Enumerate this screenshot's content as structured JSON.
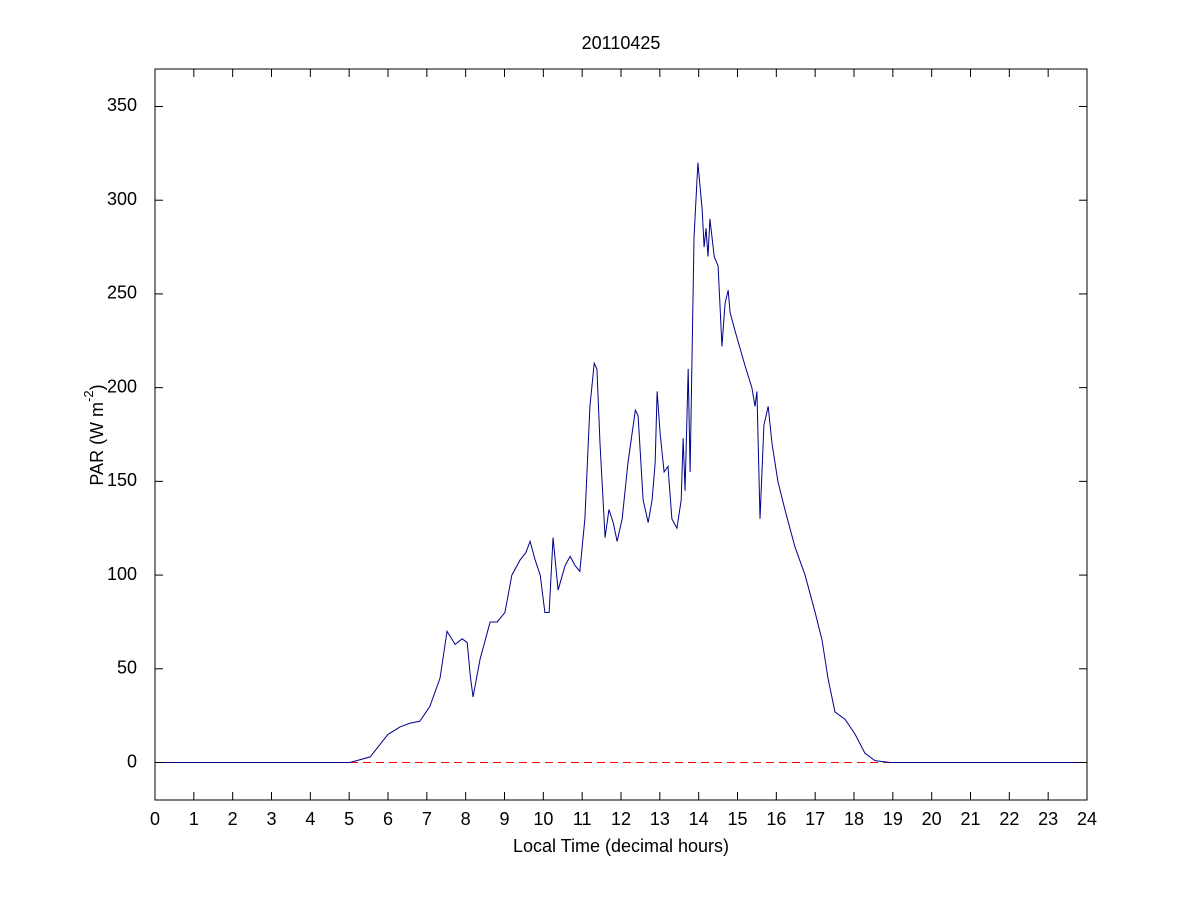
{
  "chart_data": {
    "type": "line",
    "title": "20110425",
    "xlabel": "Local Time (decimal hours)",
    "ylabel": [
      "PAR (W m",
      "-2",
      ")"
    ],
    "xlim": [
      0,
      24
    ],
    "xticks": [
      0,
      1,
      2,
      3,
      4,
      5,
      6,
      7,
      8,
      9,
      10,
      11,
      12,
      13,
      14,
      15,
      16,
      17,
      18,
      19,
      20,
      21,
      22,
      23,
      24
    ],
    "ylim": [
      -20,
      370
    ],
    "yticks": [
      0,
      50,
      100,
      150,
      200,
      250,
      300,
      350
    ],
    "grid": false,
    "reference_line": {
      "y": 0,
      "color": "#ff0000",
      "style": "dashed"
    },
    "series": [
      {
        "color": "#00008b",
        "x": [
          0,
          5.02,
          5.54,
          6.0,
          6.31,
          6.57,
          6.82,
          7.08,
          7.34,
          7.52,
          7.73,
          7.91,
          8.04,
          8.12,
          8.19,
          8.37,
          8.63,
          8.81,
          9.01,
          9.19,
          9.4,
          9.55,
          9.66,
          9.79,
          9.92,
          10.04,
          10.15,
          10.25,
          10.38,
          10.56,
          10.69,
          10.82,
          10.94,
          11.07,
          11.2,
          11.31,
          11.38,
          11.46,
          11.59,
          11.69,
          11.8,
          11.9,
          12.03,
          12.18,
          12.37,
          12.44,
          12.57,
          12.7,
          12.8,
          12.88,
          12.93,
          13.01,
          13.11,
          13.21,
          13.31,
          13.44,
          13.55,
          13.6,
          13.65,
          13.73,
          13.78,
          13.88,
          13.98,
          14.09,
          14.14,
          14.19,
          14.24,
          14.29,
          14.4,
          14.5,
          14.6,
          14.68,
          14.76,
          14.81,
          14.94,
          15.19,
          15.37,
          15.45,
          15.5,
          15.58,
          15.68,
          15.79,
          15.89,
          16.04,
          16.22,
          16.48,
          16.74,
          17.0,
          17.18,
          17.33,
          17.51,
          17.77,
          18.03,
          18.28,
          18.54,
          18.93,
          19.19,
          24
        ],
        "values": [
          0,
          0,
          3,
          15,
          19,
          21,
          22,
          30,
          45,
          70,
          63,
          66,
          64,
          46,
          35,
          55,
          75,
          75,
          80,
          100,
          108,
          112,
          118,
          108,
          100,
          80,
          80,
          120,
          92,
          105,
          110,
          105,
          102,
          130,
          190,
          213,
          210,
          170,
          120,
          135,
          128,
          118,
          130,
          160,
          188,
          185,
          140,
          128,
          140,
          160,
          198,
          175,
          155,
          158,
          130,
          125,
          140,
          173,
          145,
          210,
          155,
          280,
          320,
          295,
          275,
          285,
          270,
          290,
          270,
          265,
          222,
          245,
          252,
          240,
          230,
          212,
          200,
          190,
          198,
          130,
          180,
          190,
          170,
          150,
          135,
          115,
          100,
          80,
          65,
          45,
          27,
          23,
          15,
          5,
          1,
          0,
          0,
          0
        ]
      }
    ]
  }
}
